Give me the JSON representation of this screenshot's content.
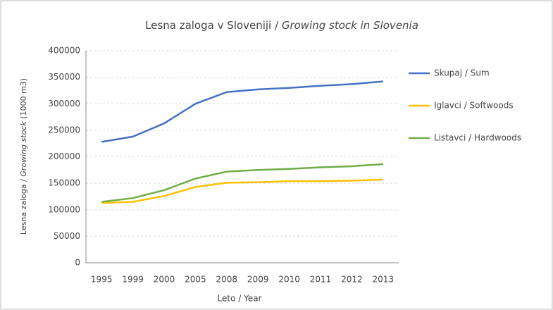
{
  "chart_data": {
    "type": "line",
    "title": [
      "Lesna zaloga v Sloveniji /",
      "Growing stock in Slovenia"
    ],
    "xlabel": "Leto / Year",
    "ylabel": [
      "Lesna zaloga /",
      "Growing stock",
      "(1000 m3)"
    ],
    "categories": [
      "1995",
      "1999",
      "2000",
      "2005",
      "2008",
      "2009",
      "2010",
      "2011",
      "2012",
      "2013"
    ],
    "series": [
      {
        "name": "Skupaj / Sum",
        "color": "#4472c4",
        "values": [
          228000,
          238000,
          263000,
          300000,
          322000,
          327000,
          330000,
          334000,
          337000,
          342000
        ]
      },
      {
        "name": "Iglavci / Softwoods",
        "color": "#ffc000",
        "values": [
          113000,
          115000,
          126000,
          143000,
          151000,
          152000,
          154000,
          154000,
          155000,
          157000
        ]
      },
      {
        "name": "Listavci / Hardwoods",
        "color": "#70ad47",
        "values": [
          115000,
          122000,
          137000,
          159000,
          172000,
          175000,
          177000,
          180000,
          182000,
          186000
        ]
      }
    ],
    "ylim": [
      0,
      400000
    ],
    "yticks": [
      0,
      50000,
      100000,
      150000,
      200000,
      250000,
      300000,
      350000,
      400000
    ],
    "grid": true,
    "legend": "right"
  }
}
